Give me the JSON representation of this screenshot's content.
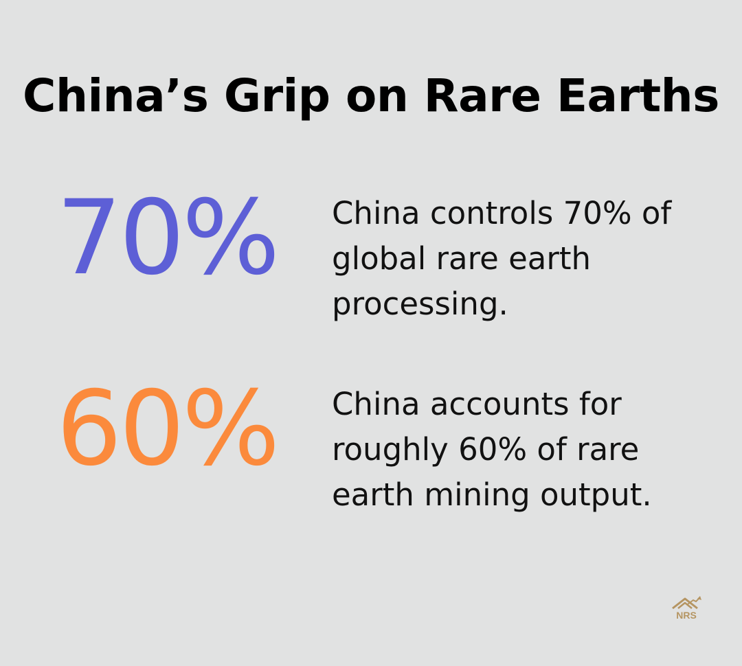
{
  "title": "China’s Grip on Rare Earths",
  "stats": [
    {
      "value": "70%",
      "color": "#5d5fd6",
      "description": "China controls 70% of global rare earth processing."
    },
    {
      "value": "60%",
      "color": "#fb8a3c",
      "description": "China accounts for roughly 60% of rare earth mining output."
    }
  ],
  "logo": {
    "text": "NRS",
    "icon": "house-chart-logo-icon",
    "color": "#b59562"
  }
}
